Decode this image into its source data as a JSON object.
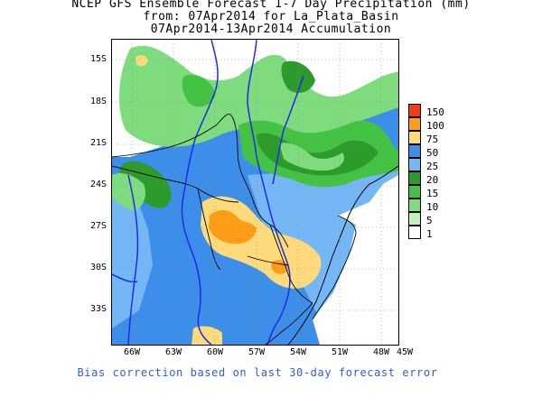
{
  "title": {
    "line1": "NCEP GFS Ensemble Forecast 1-7 Day Precipitation (mm)",
    "line2": "from: 07Apr2014   for La_Plata_Basin",
    "line3": "07Apr2014-13Apr2014 Accumulation"
  },
  "axes": {
    "lat_labels": [
      "15S",
      "18S",
      "21S",
      "24S",
      "27S",
      "30S",
      "33S"
    ],
    "lon_labels": [
      "66W",
      "63W",
      "60W",
      "57W",
      "54W",
      "51W",
      "48W",
      "45W"
    ]
  },
  "legend": {
    "levels": [
      {
        "label": "150",
        "color": "#f53a18"
      },
      {
        "label": "100",
        "color": "#ff9d16"
      },
      {
        "label": "75",
        "color": "#fddb7c"
      },
      {
        "label": "50",
        "color": "#3d8ee8"
      },
      {
        "label": "25",
        "color": "#75b6f4"
      },
      {
        "label": "20",
        "color": "#2c9b2c"
      },
      {
        "label": "15",
        "color": "#44c244"
      },
      {
        "label": "10",
        "color": "#7edc7e"
      },
      {
        "label": "5",
        "color": "#bdf0bd"
      },
      {
        "label": "1",
        "color": "#ffffff"
      }
    ]
  },
  "footer": "Bias correction based on last 30-day forecast error"
}
